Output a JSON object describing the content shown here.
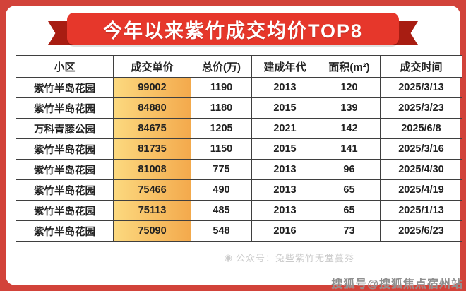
{
  "banner": {
    "title": "今年以来紫竹成交均价TOP8"
  },
  "table": {
    "headers": [
      "小区",
      "成交单价",
      "总价(万)",
      "建成年代",
      "面积(m²)",
      "成交时间"
    ],
    "rows": [
      [
        "紫竹半岛花园",
        "99002",
        "1190",
        "2013",
        "120",
        "2025/3/13"
      ],
      [
        "紫竹半岛花园",
        "84880",
        "1180",
        "2015",
        "139",
        "2025/3/23"
      ],
      [
        "万科青藤公园",
        "84675",
        "1205",
        "2021",
        "142",
        "2025/6/8"
      ],
      [
        "紫竹半岛花园",
        "81735",
        "1150",
        "2015",
        "141",
        "2025/3/16"
      ],
      [
        "紫竹半岛花园",
        "81008",
        "775",
        "2013",
        "96",
        "2025/4/30"
      ],
      [
        "紫竹半岛花园",
        "75466",
        "490",
        "2013",
        "65",
        "2025/4/19"
      ],
      [
        "紫竹半岛花园",
        "75113",
        "485",
        "2013",
        "65",
        "2025/1/13"
      ],
      [
        "紫竹半岛花园",
        "75090",
        "548",
        "2016",
        "73",
        "2025/6/23"
      ]
    ]
  },
  "watermarks": {
    "account_label": "公众号：兔些紫竹无堂蔓秀",
    "sohu": "搜狐号@搜狐焦点宿州站"
  },
  "colors": {
    "page_background": "#d2433a",
    "ribbon_red": "#e6372b",
    "ribbon_tail_red": "#a81d12",
    "price_cell_gradient_start": "#fcd97f",
    "price_cell_gradient_end": "#f3a94c",
    "table_border": "#3f3f3f"
  },
  "chart_data": {
    "type": "table",
    "title": "今年以来紫竹成交均价TOP8",
    "columns": [
      "小区",
      "成交单价",
      "总价(万)",
      "建成年代",
      "面积(m²)",
      "成交时间"
    ],
    "rows": [
      [
        "紫竹半岛花园",
        99002,
        1190,
        2013,
        120,
        "2025/3/13"
      ],
      [
        "紫竹半岛花园",
        84880,
        1180,
        2015,
        139,
        "2025/3/23"
      ],
      [
        "万科青藤公园",
        84675,
        1205,
        2021,
        142,
        "2025/6/8"
      ],
      [
        "紫竹半岛花园",
        81735,
        1150,
        2015,
        141,
        "2025/3/16"
      ],
      [
        "紫竹半岛花园",
        81008,
        775,
        2013,
        96,
        "2025/4/30"
      ],
      [
        "紫竹半岛花园",
        75466,
        490,
        2013,
        65,
        "2025/4/19"
      ],
      [
        "紫竹半岛花园",
        75113,
        485,
        2013,
        65,
        "2025/1/13"
      ],
      [
        "紫竹半岛花园",
        75090,
        548,
        2016,
        73,
        "2025/6/23"
      ]
    ],
    "highlighted_column": "成交单价"
  }
}
